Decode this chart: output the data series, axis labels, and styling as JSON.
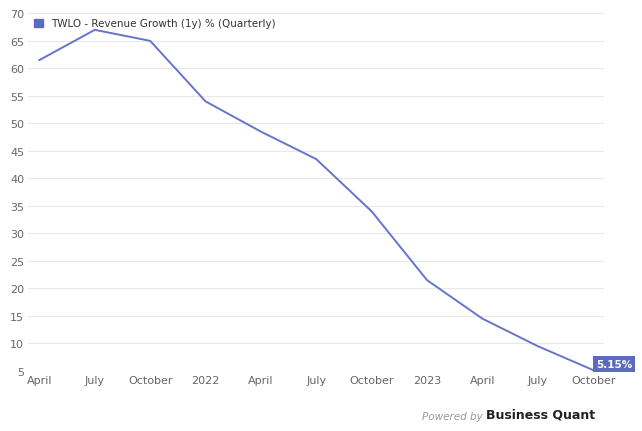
{
  "x_labels": [
    "April",
    "July",
    "October",
    "2022",
    "April",
    "July",
    "October",
    "2023",
    "April",
    "July",
    "October"
  ],
  "y_values": [
    61.5,
    67.0,
    65.0,
    54.0,
    48.5,
    43.5,
    34.0,
    21.5,
    14.5,
    9.5,
    5.15
  ],
  "line_color": "#6674CC",
  "title": "TWLO - Revenue Growth (1y) % (Quarterly)",
  "legend_box_color": "#5B6BBF",
  "ylim_min": 5,
  "ylim_max": 70,
  "yticks": [
    5,
    10,
    15,
    20,
    25,
    30,
    35,
    40,
    45,
    50,
    55,
    60,
    65,
    70
  ],
  "annotation_text": "5.15%",
  "annotation_bg": "#5B6BBF",
  "annotation_fg": "#FFFFFF",
  "background_color": "#FFFFFF"
}
